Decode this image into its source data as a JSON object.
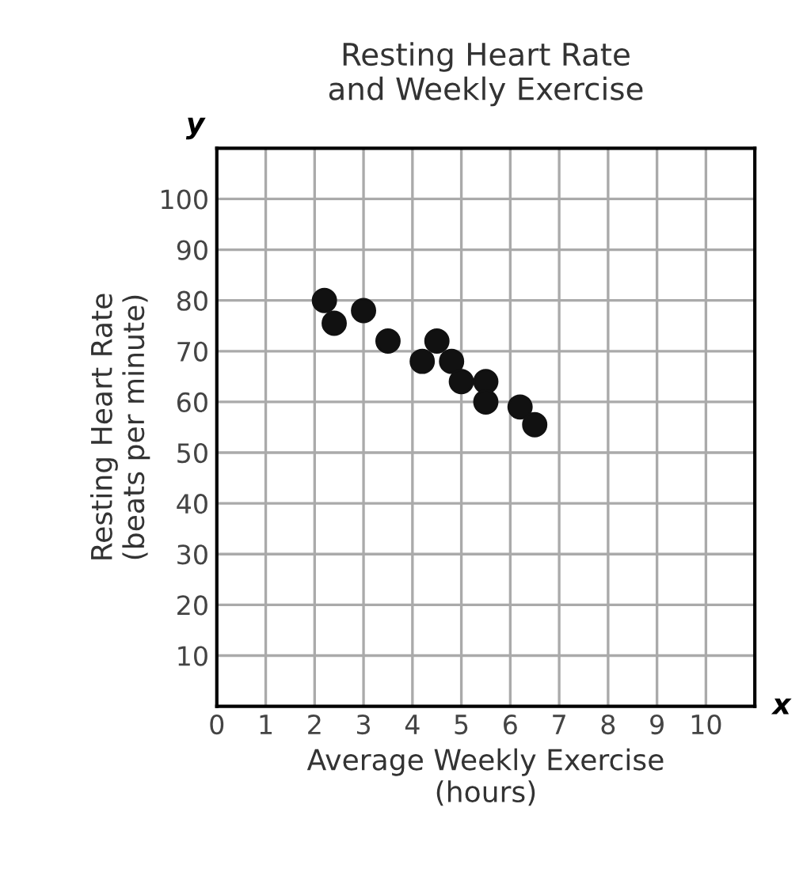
{
  "chart_data": {
    "type": "scatter",
    "title": "Resting Heart Rate\nand Weekly Exercise",
    "xlabel": "Average Weekly Exercise\n(hours)",
    "ylabel": "Resting Heart Rate\n(beats per minute)",
    "x": [
      2.2,
      2.4,
      3,
      3.5,
      4.2,
      4.5,
      4.8,
      5,
      5.5,
      5.5,
      6.2,
      6.5
    ],
    "values": [
      80,
      75.5,
      78,
      72,
      68,
      72,
      68,
      64,
      64,
      60,
      59,
      55.5
    ],
    "color": "#111111",
    "marker": "circle",
    "xlim": [
      0,
      11
    ],
    "ylim": [
      0,
      110
    ],
    "xticks": [
      0,
      1,
      2,
      3,
      4,
      5,
      6,
      7,
      8,
      9,
      10
    ],
    "yticks": [
      10,
      20,
      30,
      40,
      50,
      60,
      70,
      80,
      90,
      100
    ],
    "grid": true,
    "annotations": [
      "y",
      "x"
    ]
  }
}
